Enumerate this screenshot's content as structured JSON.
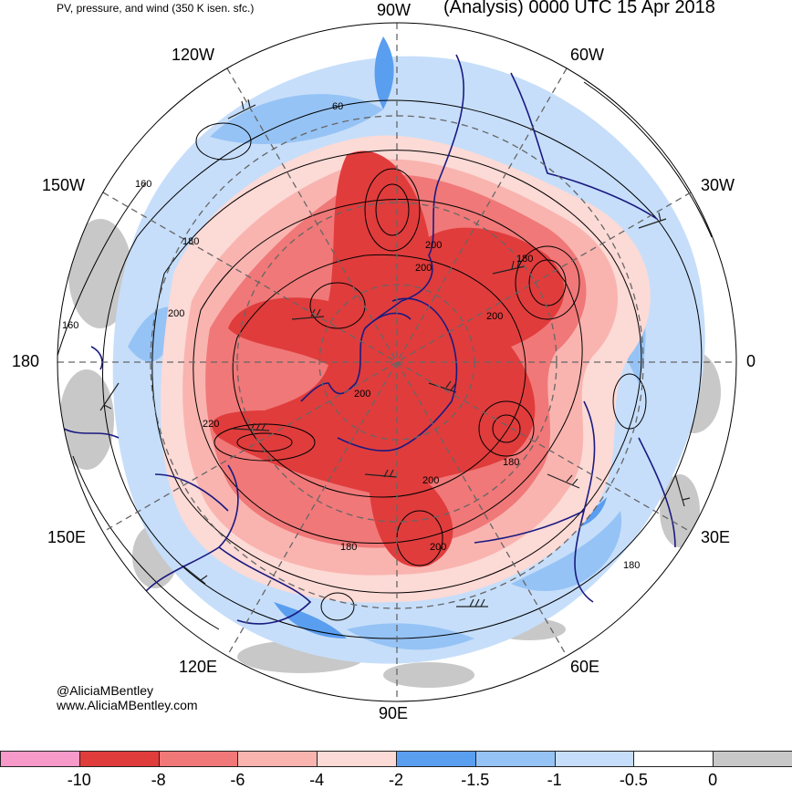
{
  "header": {
    "subtitle": "PV, pressure, and wind (350 K isen. sfc.)",
    "title": "(Analysis) 0000 UTC 15 Apr 2018"
  },
  "map": {
    "projection": "north-polar-stereographic",
    "longitude_labels": [
      "90W",
      "60W",
      "30W",
      "0",
      "30E",
      "60E",
      "90E",
      "120E",
      "150E",
      "180",
      "150W",
      "120W"
    ],
    "contour_labels": [
      "60",
      "160",
      "180",
      "200",
      "160",
      "200",
      "180",
      "200",
      "200",
      "220",
      "200",
      "180",
      "200",
      "180",
      "180",
      "200"
    ],
    "colors": {
      "strong_red": "#e03c3c",
      "medium_red": "#f07878",
      "light_red": "#f9b4b0",
      "pale_red": "#fcdad6",
      "blue": "#5a9ef0",
      "medium_blue": "#96c3f5",
      "light_blue": "#c6defa",
      "gray": "#c8c8c8",
      "coastline": "#1a1a80"
    }
  },
  "credits": {
    "handle": "@AliciaMBentley",
    "url": "www.AliciaMBentley.com"
  },
  "colorbar": {
    "colors": [
      "#f799c9",
      "#e03c3c",
      "#f07878",
      "#f9b4b0",
      "#fcdad6",
      "#5a9ef0",
      "#96c3f5",
      "#c6defa",
      "#ffffff",
      "#c8c8c8"
    ],
    "tick_labels": [
      "-10",
      "-8",
      "-6",
      "-4",
      "-2",
      "-1.5",
      "-1",
      "-0.5",
      "0"
    ]
  }
}
